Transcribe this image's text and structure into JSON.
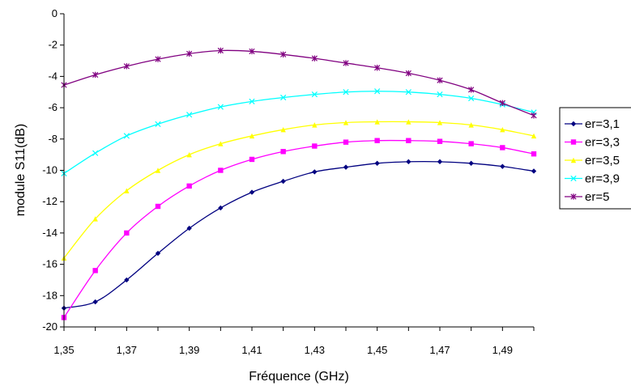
{
  "chart_data": {
    "type": "line",
    "title": "",
    "xlabel": "Fréquence (GHz)",
    "ylabel": "module S11(dB)",
    "x": [
      1.35,
      1.36,
      1.37,
      1.38,
      1.39,
      1.4,
      1.41,
      1.42,
      1.43,
      1.44,
      1.45,
      1.46,
      1.47,
      1.48,
      1.49,
      1.5
    ],
    "x_tick_labels": [
      "1,35",
      "1,37",
      "1,39",
      "1,41",
      "1,43",
      "1,45",
      "1,47",
      "1,49"
    ],
    "x_tick_values": [
      1.35,
      1.37,
      1.39,
      1.41,
      1.43,
      1.45,
      1.47,
      1.49
    ],
    "xlim": [
      1.35,
      1.5
    ],
    "y_tick_labels": [
      "0",
      "-2",
      "-4",
      "-6",
      "-8",
      "-10",
      "-12",
      "-14",
      "-16",
      "-18",
      "-20"
    ],
    "y_tick_values": [
      0,
      -2,
      -4,
      -6,
      -8,
      -10,
      -12,
      -14,
      -16,
      -18,
      -20
    ],
    "ylim": [
      -20,
      0
    ],
    "grid": false,
    "legend_position": "right",
    "series": [
      {
        "name": "er=3,1",
        "color": "#000080",
        "marker": "diamond",
        "values": [
          -18.8,
          -18.4,
          -17.0,
          -15.3,
          -13.7,
          -12.4,
          -11.4,
          -10.7,
          -10.1,
          -9.8,
          -9.55,
          -9.45,
          -9.45,
          -9.55,
          -9.75,
          -10.05
        ]
      },
      {
        "name": "er=3,3",
        "color": "#FF00FF",
        "marker": "square",
        "values": [
          -19.4,
          -16.4,
          -14.0,
          -12.3,
          -11.0,
          -10.0,
          -9.3,
          -8.8,
          -8.45,
          -8.2,
          -8.1,
          -8.1,
          -8.15,
          -8.3,
          -8.55,
          -8.95
        ]
      },
      {
        "name": "er=3,5",
        "color": "#FFFF00",
        "marker": "triangle",
        "values": [
          -15.6,
          -13.1,
          -11.3,
          -10.0,
          -9.0,
          -8.3,
          -7.8,
          -7.4,
          -7.1,
          -6.95,
          -6.9,
          -6.9,
          -6.95,
          -7.1,
          -7.4,
          -7.8
        ]
      },
      {
        "name": "er=3,9",
        "color": "#00FFFF",
        "marker": "x",
        "values": [
          -10.2,
          -8.9,
          -7.8,
          -7.05,
          -6.45,
          -5.95,
          -5.6,
          -5.35,
          -5.15,
          -5.0,
          -4.95,
          -5.0,
          -5.15,
          -5.4,
          -5.8,
          -6.3
        ]
      },
      {
        "name": "er=5",
        "color": "#800080",
        "marker": "star",
        "values": [
          -4.55,
          -3.9,
          -3.35,
          -2.9,
          -2.55,
          -2.35,
          -2.4,
          -2.6,
          -2.85,
          -3.15,
          -3.45,
          -3.8,
          -4.25,
          -4.85,
          -5.7,
          -6.5
        ]
      }
    ]
  }
}
